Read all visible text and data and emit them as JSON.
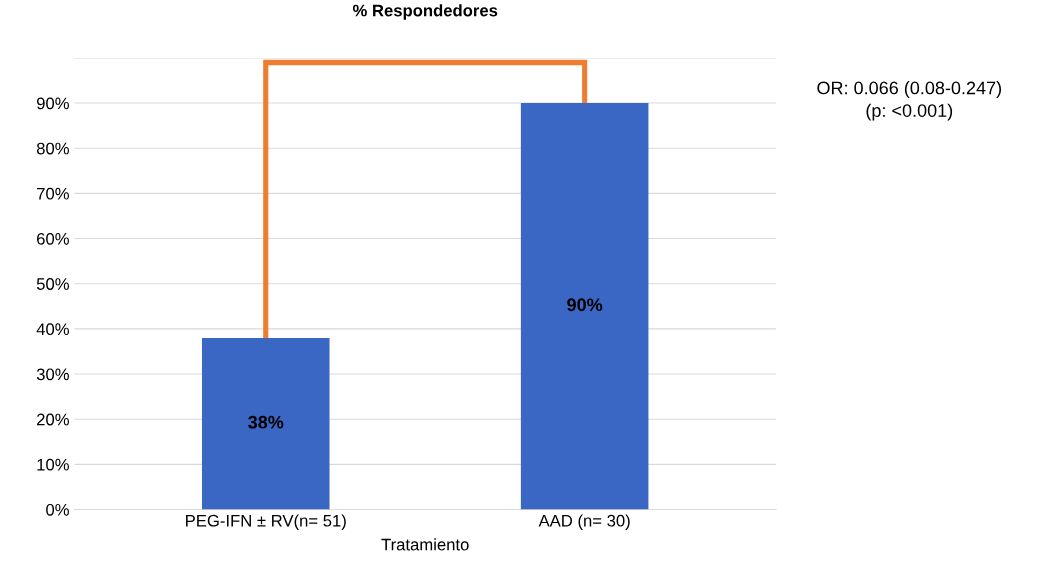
{
  "chart_data": {
    "type": "bar",
    "title": "% Respondedores",
    "xlabel": "Tratamiento",
    "categories": [
      "PEG-IFN ± RV(n= 51)",
      "AAD (n= 30)"
    ],
    "values": [
      38,
      90
    ],
    "color": "#3a66c4",
    "value_labels": [
      "38%",
      "90%"
    ],
    "ylim": [
      0,
      100
    ],
    "yticks": [
      {
        "value": 0,
        "label": "0%"
      },
      {
        "value": 10,
        "label": "10%"
      },
      {
        "value": 20,
        "label": "20%"
      },
      {
        "value": 30,
        "label": "30%"
      },
      {
        "value": 40,
        "label": "40%"
      },
      {
        "value": 50,
        "label": "50%"
      },
      {
        "value": 60,
        "label": "60%"
      },
      {
        "value": 70,
        "label": "70%"
      },
      {
        "value": 80,
        "label": "80%"
      },
      {
        "value": 90,
        "label": "90%"
      },
      {
        "value": 100,
        "label": null
      }
    ],
    "grid": "y",
    "annotations": [
      "OR: 0.066 (0.08-0.247)",
      "(p: <0.001)"
    ]
  }
}
